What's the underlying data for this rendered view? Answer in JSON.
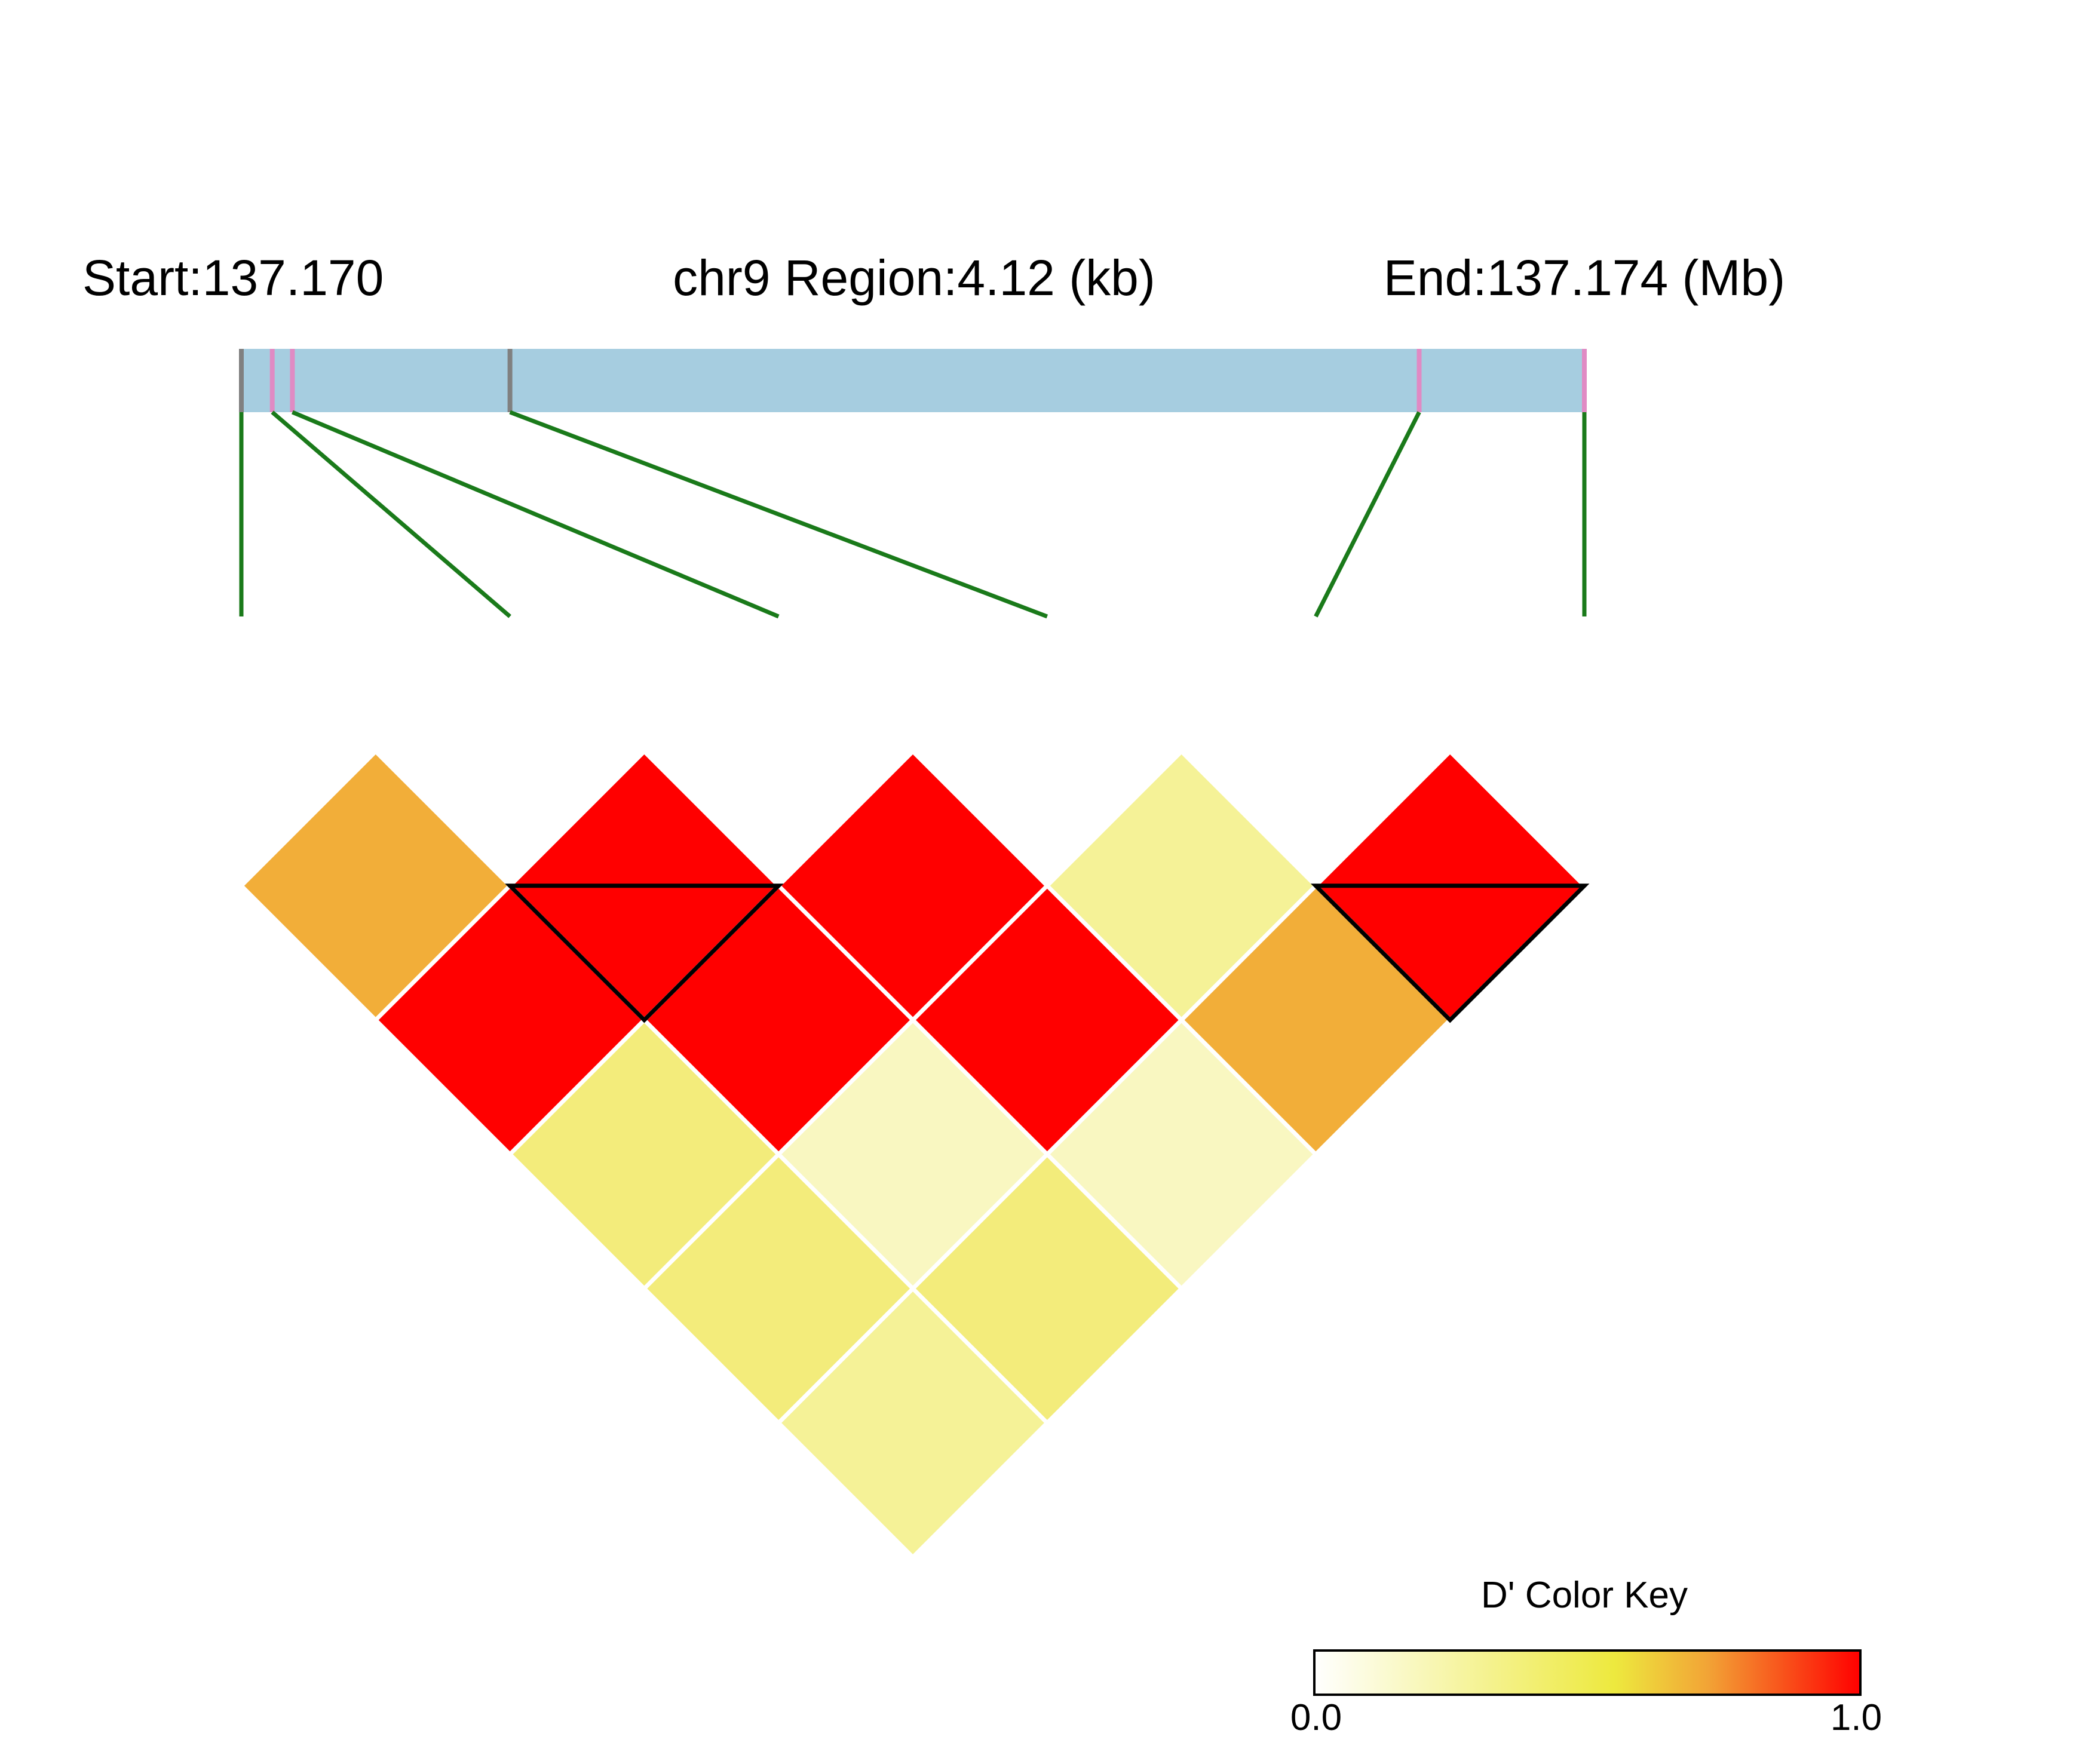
{
  "header": {
    "start_label": "Start:137.170",
    "region_label": "chr9 Region:4.12 (kb)",
    "end_label": "End:137.174 (Mb)"
  },
  "snp_track": {
    "region_start_mb": 137.17,
    "region_end_mb": 137.174,
    "markers": [
      {
        "pos_fraction": 0.0,
        "color": "#808080"
      },
      {
        "pos_fraction": 0.023,
        "color": "#e08ac4"
      },
      {
        "pos_fraction": 0.038,
        "color": "#e08ac4"
      },
      {
        "pos_fraction": 0.2,
        "color": "#808080"
      },
      {
        "pos_fraction": 0.877,
        "color": "#e08ac4"
      },
      {
        "pos_fraction": 1.0,
        "color": "#e08ac4"
      }
    ],
    "bar_color": "#a6cde0",
    "connector_color": "#1a7a1a"
  },
  "chart_data": {
    "type": "heatmap",
    "metric": "D'",
    "snp_count": 6,
    "pairs": [
      {
        "i": 1,
        "j": 2,
        "d_prime": 0.75
      },
      {
        "i": 2,
        "j": 3,
        "d_prime": 1.0
      },
      {
        "i": 3,
        "j": 4,
        "d_prime": 1.0
      },
      {
        "i": 4,
        "j": 5,
        "d_prime": 0.3
      },
      {
        "i": 5,
        "j": 6,
        "d_prime": 1.0
      },
      {
        "i": 1,
        "j": 3,
        "d_prime": 1.0
      },
      {
        "i": 2,
        "j": 4,
        "d_prime": 1.0
      },
      {
        "i": 3,
        "j": 5,
        "d_prime": 1.0
      },
      {
        "i": 4,
        "j": 6,
        "d_prime": 0.75
      },
      {
        "i": 1,
        "j": 4,
        "d_prime": 0.33
      },
      {
        "i": 2,
        "j": 5,
        "d_prime": 0.2
      },
      {
        "i": 3,
        "j": 6,
        "d_prime": 0.2
      },
      {
        "i": 1,
        "j": 5,
        "d_prime": 0.35
      },
      {
        "i": 2,
        "j": 6,
        "d_prime": 0.35
      },
      {
        "i": 1,
        "j": 6,
        "d_prime": 0.3
      }
    ],
    "blocks": [
      {
        "from": 2,
        "to": 3
      },
      {
        "from": 5,
        "to": 6
      }
    ],
    "color_key": {
      "title": "D' Color Key",
      "min_label": "0.0",
      "max_label": "1.0",
      "stops": [
        {
          "offset": 0.0,
          "color": "#ffffff"
        },
        {
          "offset": 0.55,
          "color": "#ede93e"
        },
        {
          "offset": 0.72,
          "color": "#f2a436"
        },
        {
          "offset": 1.0,
          "color": "#ff0000"
        }
      ]
    },
    "level_colors": [
      {
        "max": 0.25,
        "color": "#f9f7c1"
      },
      {
        "max": 0.32,
        "color": "#f5f297"
      },
      {
        "max": 0.5,
        "color": "#f3ec7b"
      },
      {
        "max": 0.9,
        "color": "#f2ae39"
      },
      {
        "max": 1.0,
        "color": "#ff0000"
      }
    ]
  }
}
